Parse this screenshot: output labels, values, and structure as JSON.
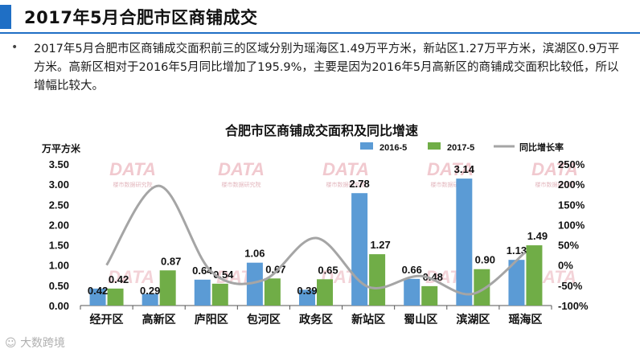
{
  "header": {
    "title": "2017年5月合肥市区商铺成交"
  },
  "description": "2017年5月合肥市区商铺成交面积前三的区域分别为瑶海区1.49万平方米，新站区1.27万平方米，滨湖区0.9万平方米。高新区相对于2016年5月同比增加了195.9%，主要是因为2016年5月高新区的商铺成交面积比较低，所以增幅比较大。",
  "watermark": {
    "mark": "DATA",
    "sub": "楼市数据研究院",
    "footer": "大数跨境"
  },
  "colors": {
    "accent": "#1f6fc5",
    "series1": "#5b9bd5",
    "series2": "#70ad47",
    "line": "#a5a5a5"
  },
  "chart_data": {
    "type": "bar",
    "title": "合肥市区商铺成交面积及同比增速",
    "ylabel": "万平方米",
    "ylim": [
      0,
      3.5
    ],
    "yticks": [
      "0.00",
      "0.50",
      "1.00",
      "1.50",
      "2.00",
      "2.50",
      "3.00",
      "3.50"
    ],
    "y2lim": [
      -100,
      250
    ],
    "y2ticks": [
      "-100%",
      "-50%",
      "0%",
      "50%",
      "100%",
      "150%",
      "200%",
      "250%"
    ],
    "categories": [
      "经开区",
      "高新区",
      "庐阳区",
      "包河区",
      "政务区",
      "新站区",
      "蜀山区",
      "滨湖区",
      "瑶海区"
    ],
    "series": [
      {
        "name": "2016-5",
        "values": [
          0.42,
          0.29,
          0.64,
          1.06,
          0.39,
          2.78,
          0.66,
          3.14,
          1.13
        ],
        "labels": [
          "0.42",
          "0.29",
          "0.64",
          "1.06",
          "0.39",
          "2.78",
          "0.66",
          "3.14",
          "1.13"
        ]
      },
      {
        "name": "2017-5",
        "values": [
          0.42,
          0.87,
          0.54,
          0.67,
          0.65,
          1.27,
          0.48,
          0.9,
          1.49
        ],
        "labels": [
          "0.42",
          "0.87",
          "0.54",
          "0.67",
          "0.65",
          "1.27",
          "0.48",
          "0.90",
          "1.49"
        ]
      },
      {
        "name": "同比增长率",
        "type": "line",
        "axis": "right",
        "values": [
          0,
          196,
          -16,
          -37,
          67,
          -54,
          -27,
          -71,
          32
        ]
      }
    ],
    "legend": "top-right",
    "grid": false
  }
}
